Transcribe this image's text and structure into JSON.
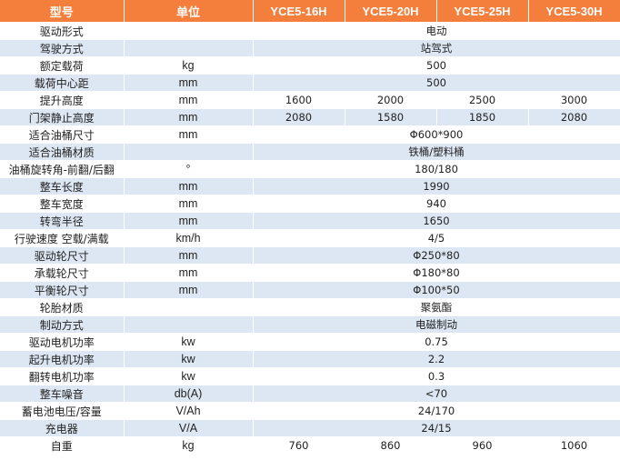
{
  "header": {
    "model_label": "型号",
    "unit_label": "单位",
    "models": [
      "YCE5-16H",
      "YCE5-20H",
      "YCE5-25H",
      "YCE5-30H"
    ]
  },
  "rows": [
    {
      "name": "驱动形式",
      "unit": "",
      "value": "电动"
    },
    {
      "name": "驾驶方式",
      "unit": "",
      "value": "站驾式"
    },
    {
      "name": "额定载荷",
      "unit": "kg",
      "value": "500"
    },
    {
      "name": "载荷中心距",
      "unit": "mm",
      "value": "500"
    },
    {
      "name": "提升高度",
      "unit": "mm",
      "values": [
        "1600",
        "2000",
        "2500",
        "3000"
      ]
    },
    {
      "name": "门架静止高度",
      "unit": "mm",
      "values": [
        "2080",
        "1580",
        "1850",
        "2080"
      ]
    },
    {
      "name": "适合油桶尺寸",
      "unit": "mm",
      "value": "Φ600*900"
    },
    {
      "name": "适合油桶材质",
      "unit": "",
      "value": "铁桶/塑料桶"
    },
    {
      "name": "油桶旋转角-前翻/后翻",
      "unit": "°",
      "value": "180/180"
    },
    {
      "name": "整车长度",
      "unit": "mm",
      "value": "1990"
    },
    {
      "name": "整车宽度",
      "unit": "mm",
      "value": "940"
    },
    {
      "name": "转弯半径",
      "unit": "mm",
      "value": "1650"
    },
    {
      "name": "行驶速度 空载/满载",
      "unit": "km/h",
      "value": "4/5"
    },
    {
      "name": "驱动轮尺寸",
      "unit": "mm",
      "value": "Φ250*80"
    },
    {
      "name": "承载轮尺寸",
      "unit": "mm",
      "value": "Φ180*80"
    },
    {
      "name": "平衡轮尺寸",
      "unit": "mm",
      "value": "Φ100*50"
    },
    {
      "name": "轮胎材质",
      "unit": "",
      "value": "聚氨酯"
    },
    {
      "name": "制动方式",
      "unit": "",
      "value": "电磁制动"
    },
    {
      "name": "驱动电机功率",
      "unit": "kw",
      "value": "0.75"
    },
    {
      "name": "起升电机功率",
      "unit": "kw",
      "value": "2.2"
    },
    {
      "name": "翻转电机功率",
      "unit": "kw",
      "value": "0.3"
    },
    {
      "name": "整车噪音",
      "unit": "db(A)",
      "value": "<70"
    },
    {
      "name": "蓄电池电压/容量",
      "unit": "V/Ah",
      "value": "24/170"
    },
    {
      "name": "充电器",
      "unit": "V/A",
      "value": "24/15"
    },
    {
      "name": "自重",
      "unit": "kg",
      "values": [
        "760",
        "860",
        "960",
        "1060"
      ]
    }
  ],
  "colors": {
    "header_bg": "#f47e3b",
    "header_text": "#ffffff",
    "stripe_bg": "#dde7f3",
    "text": "#222222"
  }
}
